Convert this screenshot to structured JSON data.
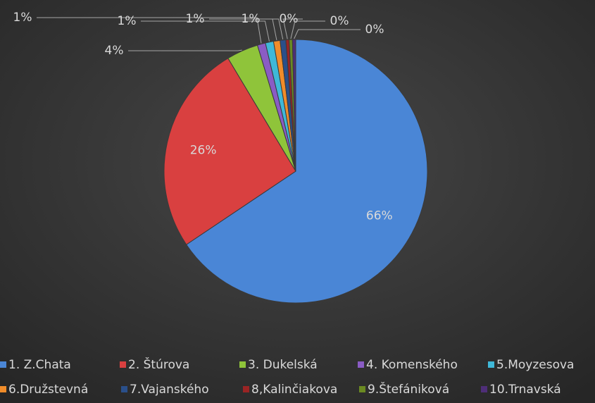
{
  "chart_data": {
    "type": "pie",
    "categories": [
      "1. Z.Chata",
      "2. Štúrova",
      "3. Dukelská",
      "4. Komenského",
      "5.Moyzesova",
      "6.Družstevná",
      "7.Vajanského",
      "8,Kalinčiakova",
      "9.Štefániková",
      "10.Trnavská"
    ],
    "values": [
      65.6,
      25.8,
      3.9,
      1.0,
      1.0,
      0.8,
      0.7,
      0.4,
      0.4,
      0.4
    ],
    "value_labels": [
      "66%",
      "26%",
      "4%",
      "1%",
      "1%",
      "1%",
      "1%",
      "0%",
      "0%",
      "0%"
    ],
    "colors": [
      "#4a86d6",
      "#d94040",
      "#8fc43a",
      "#8a5cc4",
      "#3fb8d8",
      "#f08c2a",
      "#2a4f8a",
      "#9a2424",
      "#6b8a22",
      "#4e2e78"
    ],
    "legend": "bottom"
  }
}
